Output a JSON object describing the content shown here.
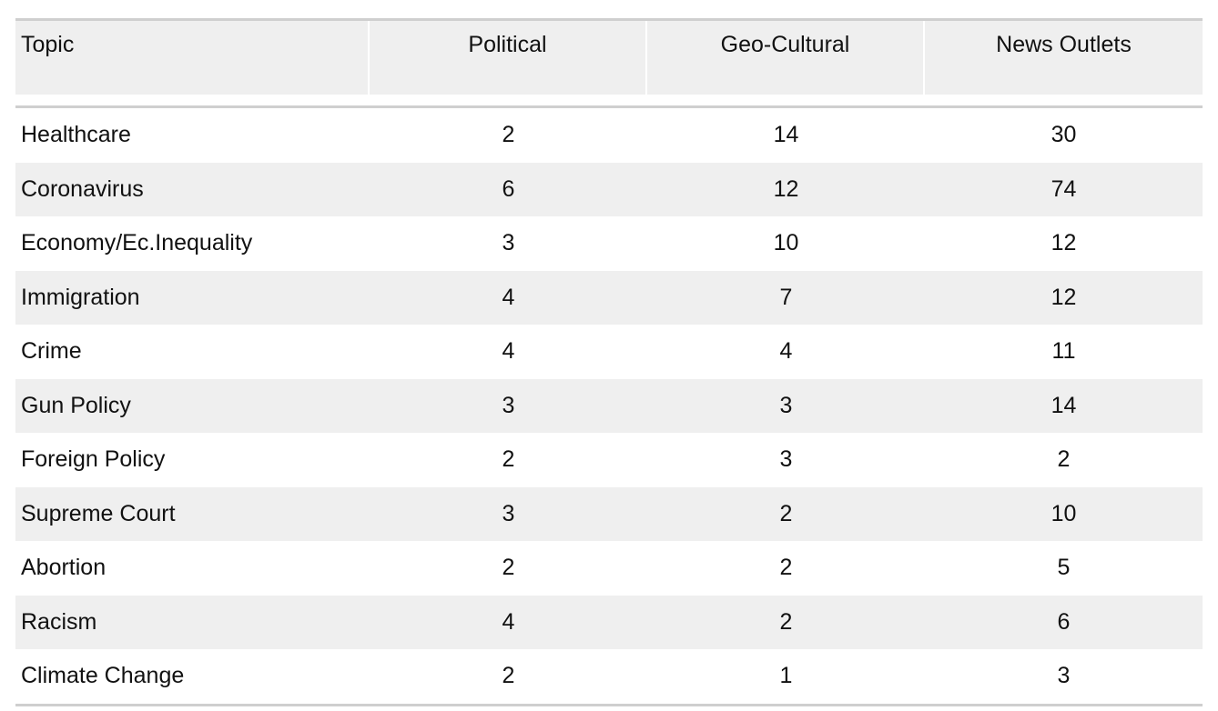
{
  "table": {
    "headers": [
      "Topic",
      "Political",
      "Geo-Cultural",
      "News Outlets"
    ],
    "rows": [
      {
        "topic": "Healthcare",
        "political": "2",
        "geo_cultural": "14",
        "news_outlets": "30"
      },
      {
        "topic": "Coronavirus",
        "political": "6",
        "geo_cultural": "12",
        "news_outlets": "74"
      },
      {
        "topic": "Economy/Ec.Inequality",
        "political": "3",
        "geo_cultural": "10",
        "news_outlets": "12"
      },
      {
        "topic": "Immigration",
        "political": "4",
        "geo_cultural": "7",
        "news_outlets": "12"
      },
      {
        "topic": "Crime",
        "political": "4",
        "geo_cultural": "4",
        "news_outlets": "11"
      },
      {
        "topic": "Gun Policy",
        "political": "3",
        "geo_cultural": "3",
        "news_outlets": "14"
      },
      {
        "topic": "Foreign Policy",
        "political": "2",
        "geo_cultural": "3",
        "news_outlets": "2"
      },
      {
        "topic": "Supreme Court",
        "political": "3",
        "geo_cultural": "2",
        "news_outlets": "10"
      },
      {
        "topic": "Abortion",
        "political": "2",
        "geo_cultural": "2",
        "news_outlets": "5"
      },
      {
        "topic": "Racism",
        "political": "4",
        "geo_cultural": "2",
        "news_outlets": "6"
      },
      {
        "topic": "Climate Change",
        "political": "2",
        "geo_cultural": "1",
        "news_outlets": "3"
      }
    ]
  },
  "colors": {
    "rule": "#cfcfcf",
    "shade": "#efefef",
    "text": "#111111"
  }
}
